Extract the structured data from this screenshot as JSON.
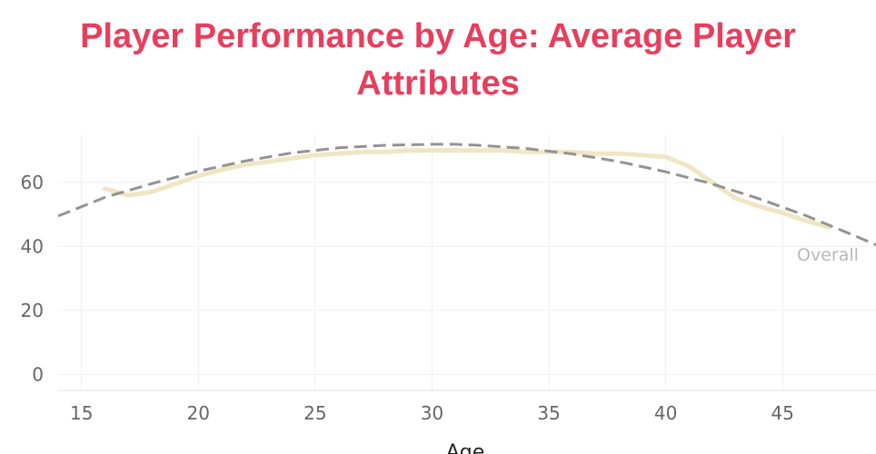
{
  "chart_data": {
    "type": "line",
    "title": "Player Performance by Age:  Average Player Attributes",
    "xlabel": "Age",
    "ylabel": "",
    "xlim": [
      14,
      49
    ],
    "ylim": [
      -5,
      75
    ],
    "x_ticks": [
      15,
      20,
      25,
      30,
      35,
      40,
      45
    ],
    "y_ticks": [
      0,
      20,
      40,
      60
    ],
    "grid": true,
    "series": [
      {
        "style": "solid",
        "color": "#efe6c4",
        "x": [
          16,
          17,
          18,
          19,
          20,
          21,
          22,
          23,
          24,
          25,
          26,
          27,
          28,
          29,
          30,
          31,
          32,
          33,
          34,
          35,
          36,
          37,
          38,
          39,
          40,
          41,
          42,
          43,
          44,
          45,
          46,
          47
        ],
        "y": [
          58,
          56,
          57,
          59.5,
          62,
          64,
          65.5,
          66.5,
          67.5,
          68.5,
          69,
          69.5,
          69.5,
          70,
          70,
          70,
          70,
          70,
          69.5,
          69.5,
          69.5,
          69,
          69,
          68.5,
          68,
          65,
          60,
          55,
          52.5,
          50.5,
          48,
          46
        ]
      },
      {
        "name": "Overall",
        "style": "dashed",
        "color": "#939393",
        "x": [
          14,
          16,
          18,
          20,
          22,
          24,
          26,
          28,
          30,
          31,
          32,
          34,
          36,
          38,
          40,
          42,
          44,
          46,
          48,
          49
        ],
        "y": [
          49.5,
          55.3,
          59.6,
          63.5,
          66.7,
          69.2,
          70.8,
          71.6,
          71.9,
          71.9,
          71.6,
          70.6,
          68.9,
          66.5,
          63.3,
          59.5,
          54.9,
          49.6,
          43.6,
          40.5
        ]
      }
    ]
  }
}
